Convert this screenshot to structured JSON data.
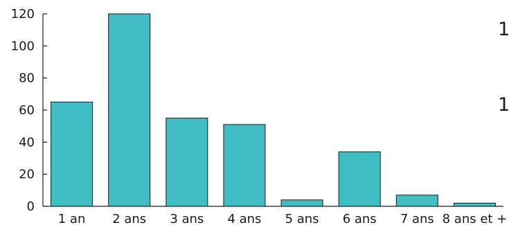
{
  "chart_data": {
    "type": "bar",
    "title": "",
    "xlabel": "",
    "ylabel": "",
    "categories": [
      "1 an",
      "2 ans",
      "3 ans",
      "4 ans",
      "5 ans",
      "6 ans",
      "7 ans",
      "8 ans et +"
    ],
    "values": [
      65,
      120,
      55,
      51,
      4,
      34,
      7,
      2
    ],
    "ylim": [
      0,
      120
    ],
    "yticks": [
      "0",
      "20",
      "40",
      "60",
      "80",
      "100",
      "120"
    ],
    "bar_color": "#41bec4",
    "grid": false,
    "legend": "none"
  },
  "cropped_text": [
    "1",
    "1"
  ]
}
